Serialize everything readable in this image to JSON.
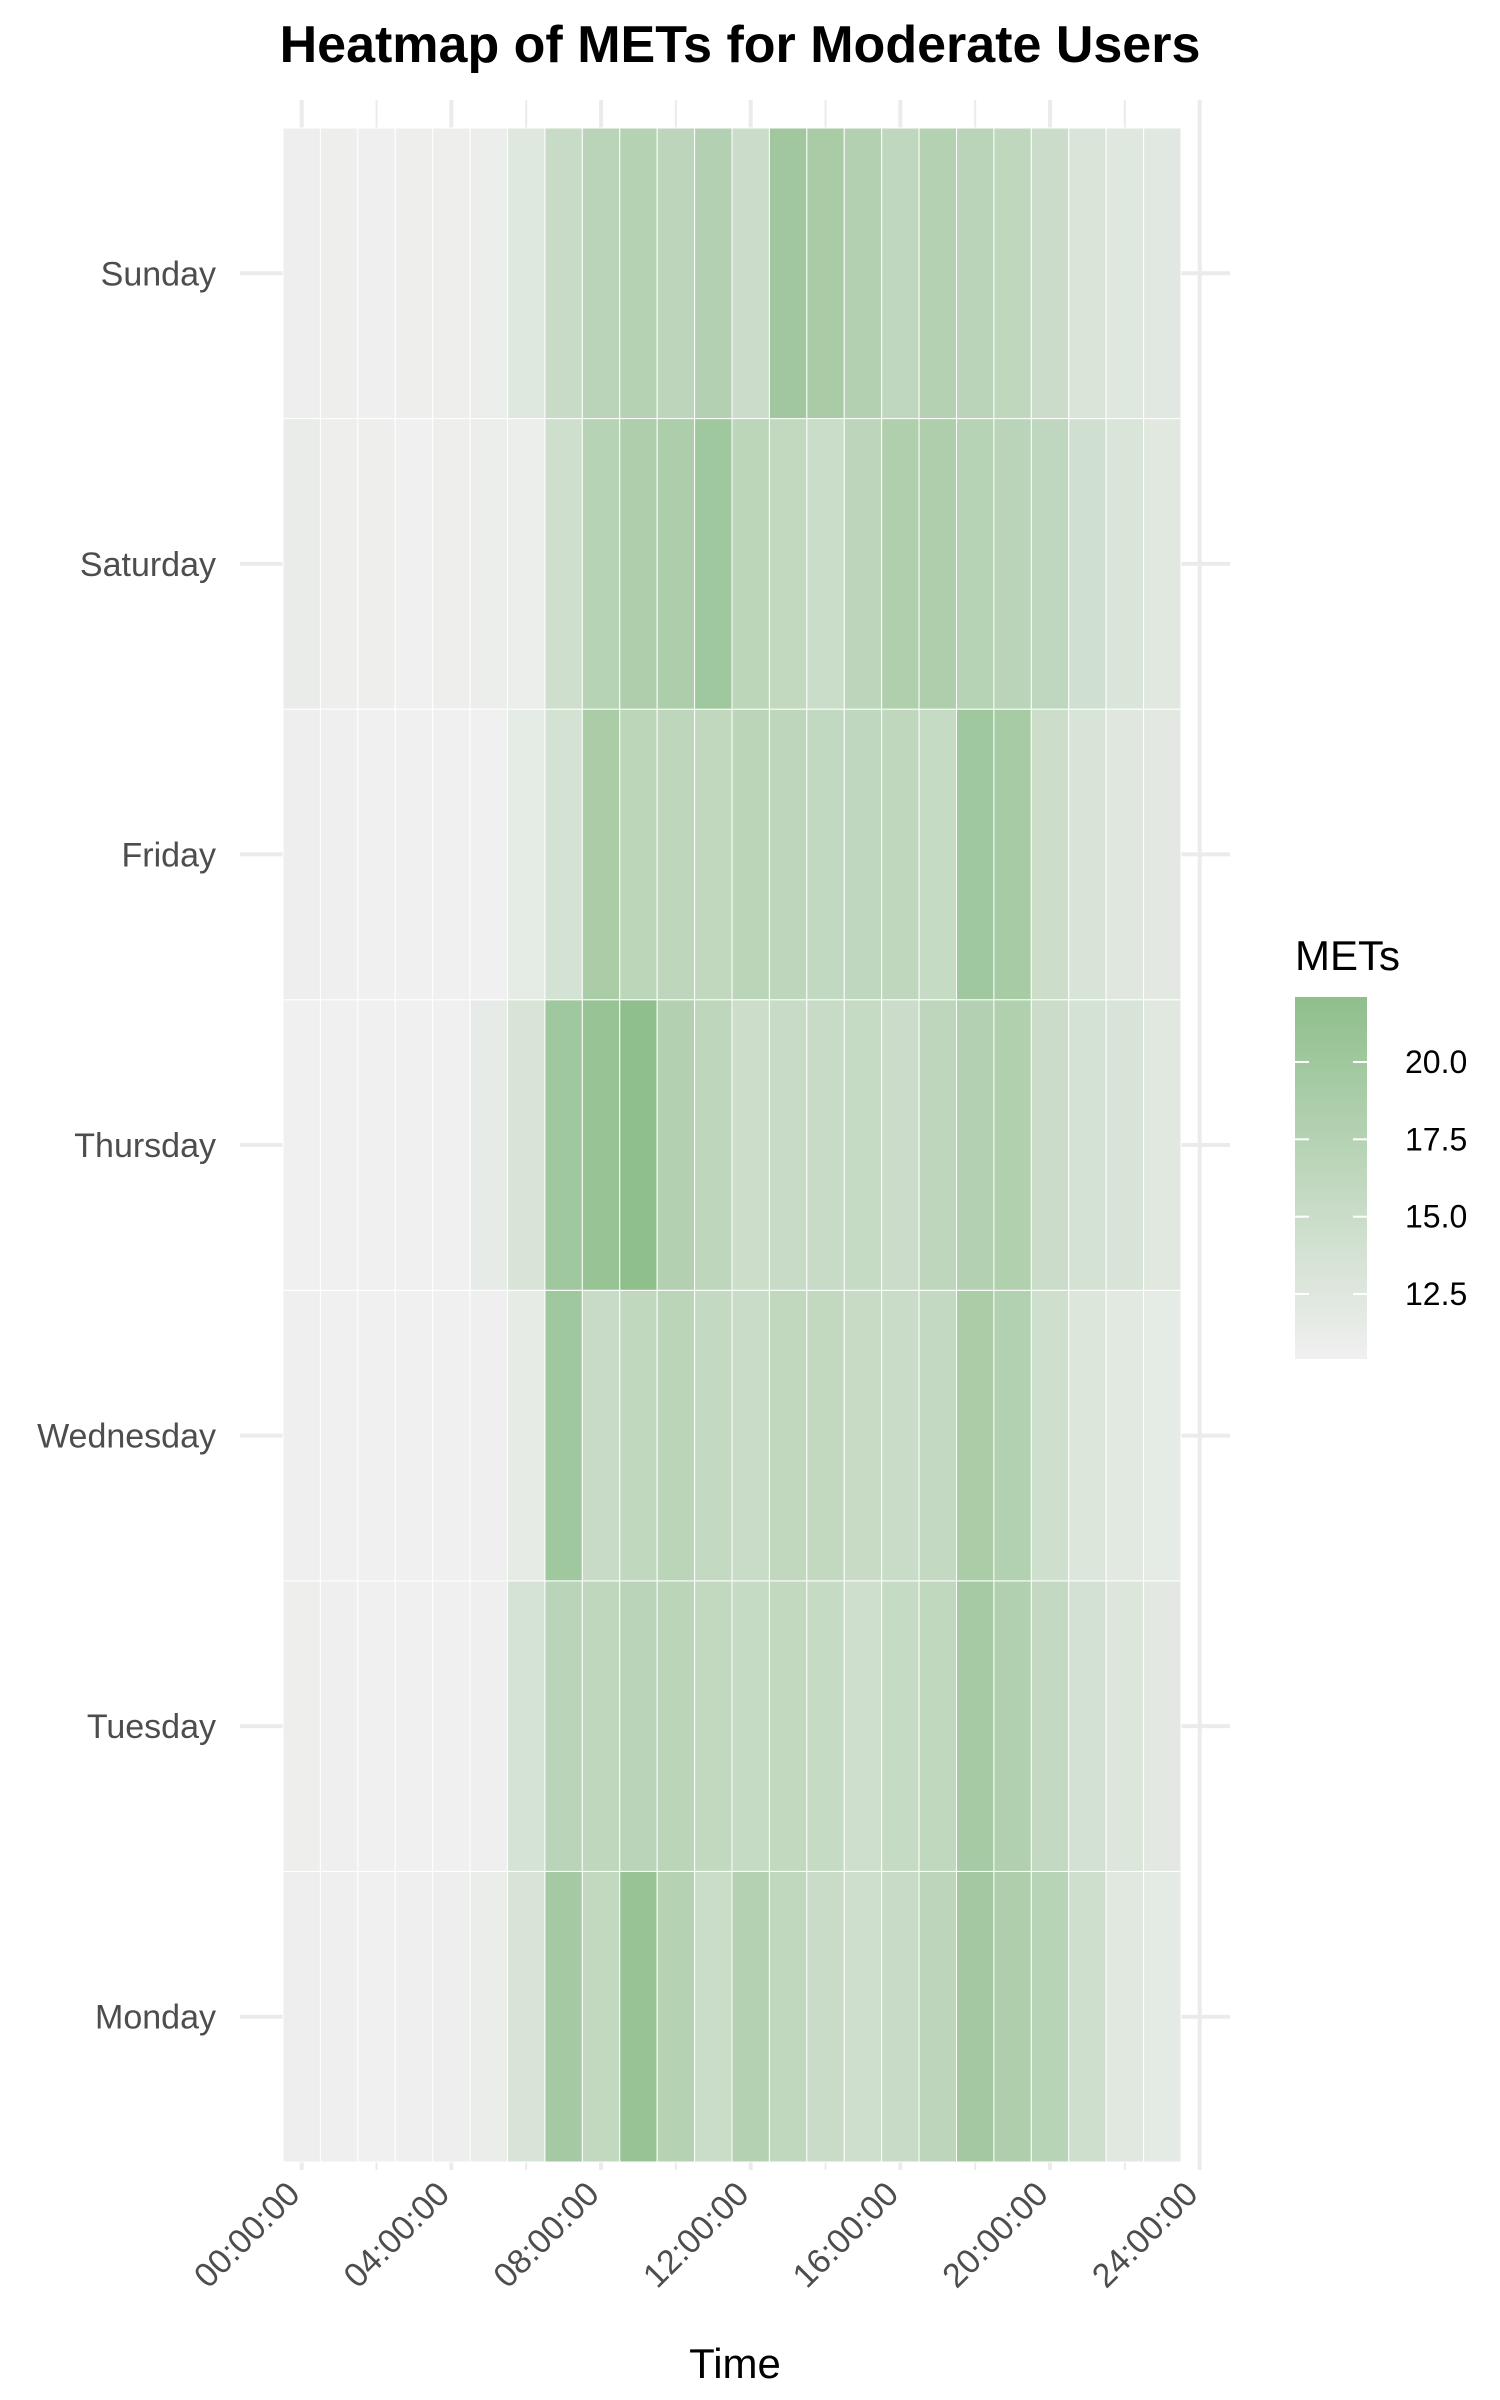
{
  "chart_data": {
    "type": "heatmap",
    "title": "Heatmap of METs for Moderate Users",
    "xlabel": "Time",
    "ylabel": "",
    "x_range": [
      0,
      24
    ],
    "x_ticks": [
      {
        "value": 0,
        "label": "00:00:00"
      },
      {
        "value": 4,
        "label": "04:00:00"
      },
      {
        "value": 8,
        "label": "08:00:00"
      },
      {
        "value": 12,
        "label": "12:00:00"
      },
      {
        "value": 16,
        "label": "16:00:00"
      },
      {
        "value": 20,
        "label": "20:00:00"
      },
      {
        "value": 24,
        "label": "24:00:00"
      }
    ],
    "x_hours": [
      0,
      1,
      2,
      3,
      4,
      5,
      6,
      7,
      8,
      9,
      10,
      11,
      12,
      13,
      14,
      15,
      16,
      17,
      18,
      19,
      20,
      21,
      22,
      23
    ],
    "y_categories": [
      "Monday",
      "Tuesday",
      "Wednesday",
      "Thursday",
      "Friday",
      "Saturday",
      "Sunday"
    ],
    "rows": [
      {
        "day": "Monday",
        "values": [
          10.8,
          10.6,
          10.5,
          10.6,
          10.8,
          11.1,
          13.2,
          19.4,
          16.0,
          21.0,
          17.5,
          15.0,
          17.6,
          16.2,
          15.2,
          14.5,
          15.3,
          16.6,
          19.6,
          18.4,
          17.2,
          14.4,
          12.3,
          11.8
        ]
      },
      {
        "day": "Tuesday",
        "values": [
          10.7,
          10.6,
          10.5,
          10.5,
          10.5,
          10.6,
          13.6,
          17.0,
          16.4,
          17.0,
          16.9,
          16.0,
          15.5,
          16.0,
          15.5,
          14.5,
          15.5,
          16.2,
          19.3,
          18.0,
          15.8,
          14.0,
          12.8,
          12.0
        ]
      },
      {
        "day": "Wednesday",
        "values": [
          10.6,
          10.5,
          10.5,
          10.5,
          10.5,
          10.6,
          11.6,
          20.0,
          15.3,
          16.2,
          16.9,
          15.8,
          15.2,
          16.1,
          16.0,
          15.4,
          15.2,
          15.8,
          18.9,
          17.9,
          14.5,
          12.8,
          12.1,
          11.7
        ]
      },
      {
        "day": "Thursday",
        "values": [
          10.5,
          10.4,
          10.4,
          10.4,
          10.5,
          11.5,
          13.2,
          20.0,
          21.0,
          22.1,
          17.8,
          16.5,
          14.8,
          15.3,
          15.3,
          15.5,
          14.9,
          16.5,
          17.7,
          18.1,
          14.9,
          13.8,
          13.2,
          12.3
        ]
      },
      {
        "day": "Friday",
        "values": [
          10.8,
          10.6,
          10.5,
          10.5,
          10.5,
          10.5,
          11.7,
          13.8,
          18.8,
          16.7,
          16.5,
          16.1,
          16.8,
          16.5,
          15.9,
          16.3,
          16.4,
          15.5,
          20.0,
          19.2,
          14.8,
          13.3,
          12.5,
          12.0
        ]
      },
      {
        "day": "Saturday",
        "values": [
          11.3,
          10.7,
          10.7,
          10.5,
          10.7,
          10.9,
          10.9,
          14.5,
          17.3,
          18.4,
          18.5,
          20.0,
          16.7,
          16.0,
          15.0,
          16.6,
          18.2,
          18.4,
          17.3,
          17.0,
          16.3,
          14.2,
          13.0,
          12.3
        ]
      },
      {
        "day": "Sunday",
        "values": [
          10.8,
          10.7,
          10.6,
          10.7,
          10.7,
          10.9,
          12.4,
          15.3,
          17.0,
          17.5,
          16.6,
          17.7,
          14.9,
          20.1,
          19.0,
          17.8,
          16.3,
          17.6,
          17.0,
          16.4,
          14.9,
          13.0,
          12.4,
          12.2
        ]
      }
    ],
    "color_scale": {
      "name": "METs",
      "low_color": "#f0f0f0",
      "high_color": "#8fbf8c",
      "min": 10.4,
      "max": 22.1,
      "breaks": [
        12.5,
        15.0,
        17.5,
        20.0
      ],
      "break_labels": [
        "12.5",
        "15.0",
        "17.5",
        "20.0"
      ]
    },
    "grid": true,
    "legend_position": "right"
  }
}
